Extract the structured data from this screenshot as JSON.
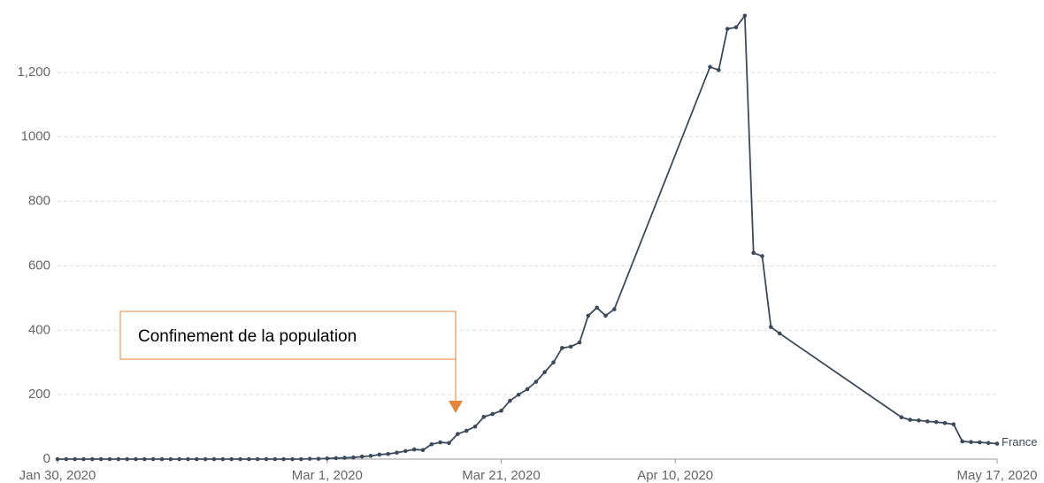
{
  "chart_data": {
    "type": "line",
    "annotation": "Confinement de la population",
    "x": [
      "2020-01-30",
      "2020-01-31",
      "2020-02-01",
      "2020-02-02",
      "2020-02-03",
      "2020-02-04",
      "2020-02-05",
      "2020-02-06",
      "2020-02-07",
      "2020-02-08",
      "2020-02-09",
      "2020-02-10",
      "2020-02-11",
      "2020-02-12",
      "2020-02-13",
      "2020-02-14",
      "2020-02-15",
      "2020-02-16",
      "2020-02-17",
      "2020-02-18",
      "2020-02-19",
      "2020-02-20",
      "2020-02-21",
      "2020-02-22",
      "2020-02-23",
      "2020-02-24",
      "2020-02-25",
      "2020-02-26",
      "2020-02-27",
      "2020-02-28",
      "2020-02-29",
      "2020-03-01",
      "2020-03-02",
      "2020-03-03",
      "2020-03-04",
      "2020-03-05",
      "2020-03-06",
      "2020-03-07",
      "2020-03-08",
      "2020-03-09",
      "2020-03-10",
      "2020-03-11",
      "2020-03-12",
      "2020-03-13",
      "2020-03-14",
      "2020-03-15",
      "2020-03-16",
      "2020-03-17",
      "2020-03-18",
      "2020-03-19",
      "2020-03-20",
      "2020-03-21",
      "2020-03-22",
      "2020-03-23",
      "2020-03-24",
      "2020-03-25",
      "2020-03-26",
      "2020-03-27",
      "2020-03-28",
      "2020-03-29",
      "2020-03-30",
      "2020-03-31",
      "2020-04-01",
      "2020-04-02",
      "2020-04-03",
      "2020-04-14",
      "2020-04-15",
      "2020-04-16",
      "2020-04-17",
      "2020-04-18",
      "2020-04-19",
      "2020-04-20",
      "2020-04-21",
      "2020-04-22",
      "2020-05-06",
      "2020-05-07",
      "2020-05-08",
      "2020-05-09",
      "2020-05-10",
      "2020-05-11",
      "2020-05-12",
      "2020-05-13",
      "2020-05-14",
      "2020-05-15",
      "2020-05-16",
      "2020-05-17"
    ],
    "series": [
      {
        "name": "France",
        "color": "#3d4a5c",
        "values": [
          0,
          0,
          0,
          0,
          0,
          0,
          0,
          0,
          0,
          0,
          0,
          0,
          0,
          0,
          0,
          0,
          0,
          0,
          0,
          0,
          0,
          0,
          0,
          0,
          0,
          0,
          0,
          0,
          0,
          1,
          1,
          2,
          3,
          4,
          5,
          8,
          10,
          14,
          16,
          20,
          25,
          30,
          28,
          46,
          52,
          50,
          78,
          88,
          101,
          131,
          140,
          150,
          181,
          200,
          217,
          240,
          270,
          300,
          345,
          349,
          362,
          445,
          470,
          445,
          465,
          1217,
          1207,
          1335,
          1340,
          1376,
          640,
          630,
          410,
          390,
          130,
          122,
          120,
          117,
          115,
          112,
          108,
          55,
          53,
          52,
          50,
          48
        ]
      }
    ],
    "xlim": [
      "2020-01-30",
      "2020-05-17"
    ],
    "xticks": [
      {
        "value": "2020-01-30",
        "label": "Jan 30, 2020"
      },
      {
        "value": "2020-03-01",
        "label": "Mar 1, 2020"
      },
      {
        "value": "2020-03-21",
        "label": "Mar 21, 2020"
      },
      {
        "value": "2020-04-10",
        "label": "Apr 10, 2020"
      },
      {
        "value": "2020-05-17",
        "label": "May 17, 2020"
      }
    ],
    "ylim": [
      0,
      1400
    ],
    "yticks": [
      0,
      200,
      400,
      600,
      800,
      1000,
      {
        "value": 1200,
        "label": "1,200"
      }
    ],
    "grid": true
  }
}
